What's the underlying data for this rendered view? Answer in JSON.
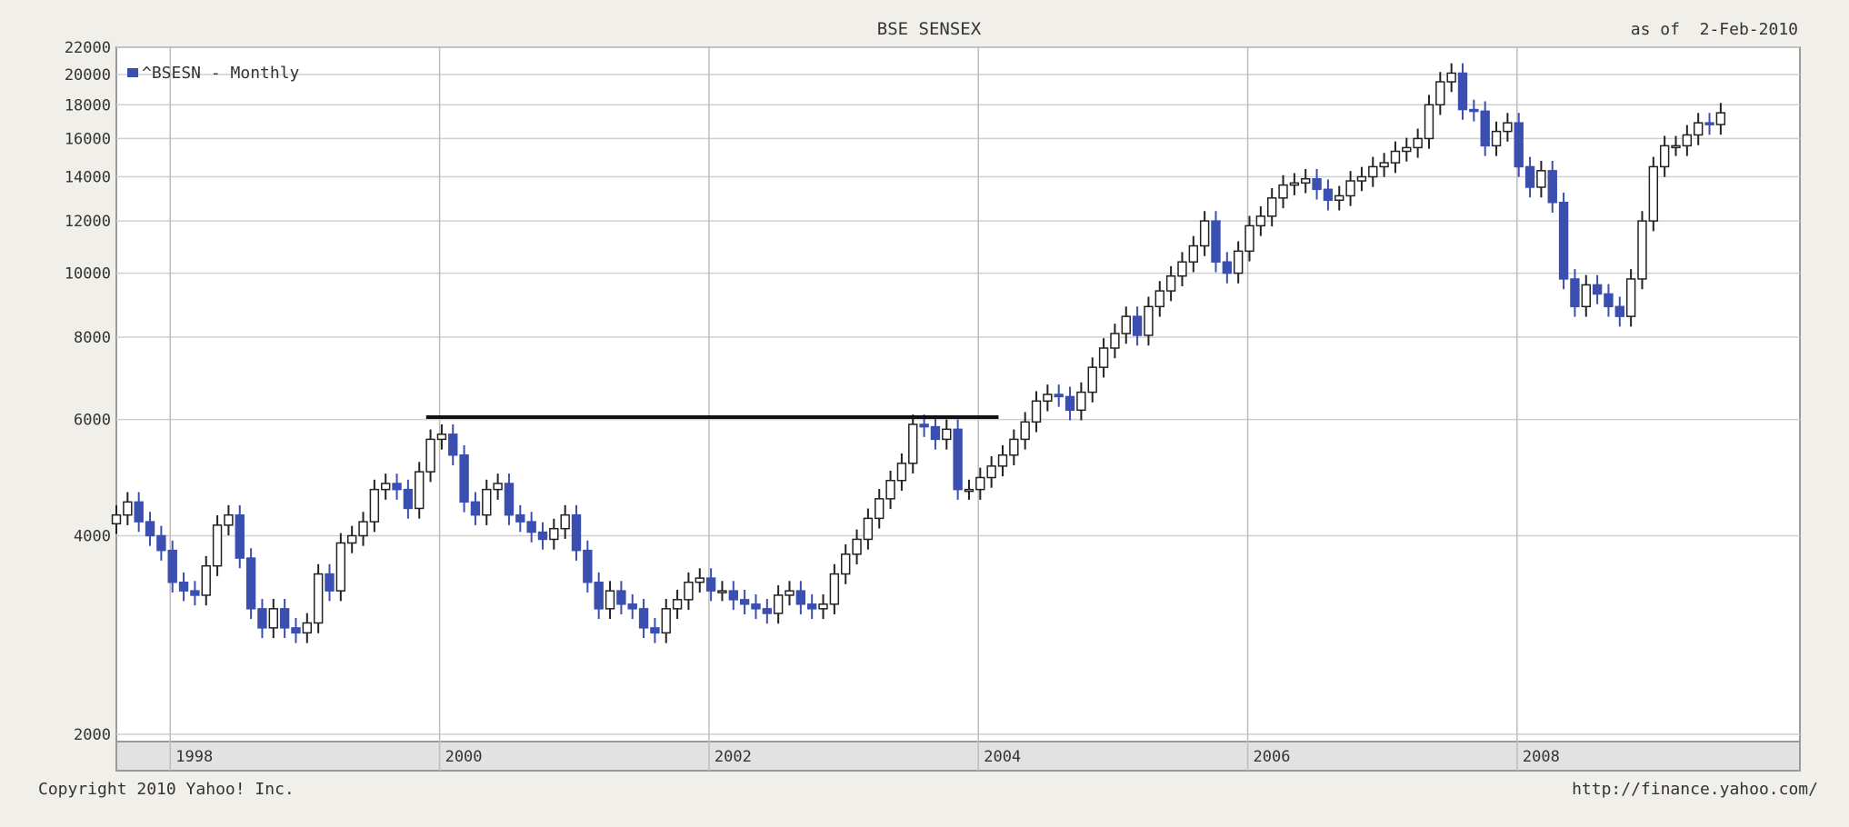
{
  "chart_data": {
    "type": "candlestick",
    "title": "BSE SENSEX",
    "as_of": "as of  2-Feb-2010",
    "legend": "^BSESN - Monthly",
    "legend_placement": "top-left",
    "copyright": "Copyright 2010 Yahoo! Inc.",
    "source_url": "http://finance.yahoo.com/",
    "y_scale": "log",
    "ylim": [
      1950,
      22000
    ],
    "y_ticks": [
      2000,
      4000,
      6000,
      8000,
      10000,
      12000,
      14000,
      16000,
      18000,
      20000,
      22000
    ],
    "xlim": [
      1997.6,
      2010.1
    ],
    "x_ticks": [
      1998,
      2000,
      2002,
      2004,
      2006,
      2008
    ],
    "x_tick_labels": [
      "1998",
      "2000",
      "2002",
      "2004",
      "2006",
      "2008"
    ],
    "grid": true,
    "colors": {
      "up": "#ffffff",
      "down": "#3a4fb0",
      "wick": "#222222",
      "reference_line": "#111111"
    },
    "reference_line": {
      "x_start": 1999.9,
      "x_end": 2004.15,
      "y": 6050
    },
    "closes": [
      4300,
      4500,
      4200,
      4000,
      3800,
      3400,
      3300,
      3250,
      3600,
      4150,
      4300,
      3700,
      3100,
      2900,
      3100,
      2900,
      2850,
      2950,
      3500,
      3300,
      3900,
      4000,
      4200,
      4700,
      4800,
      4700,
      4400,
      5000,
      5600,
      5700,
      5300,
      4500,
      4300,
      4700,
      4800,
      4300,
      4200,
      4050,
      3950,
      4100,
      4300,
      3800,
      3400,
      3100,
      3300,
      3150,
      3100,
      2900,
      2850,
      3100,
      3200,
      3400,
      3450,
      3300,
      3300,
      3200,
      3150,
      3100,
      3050,
      3250,
      3300,
      3150,
      3100,
      3150,
      3500,
      3750,
      3950,
      4250,
      4550,
      4850,
      5150,
      5900,
      5850,
      5600,
      5800,
      4700,
      4700,
      4900,
      5100,
      5300,
      5600,
      5950,
      6400,
      6550,
      6500,
      6200,
      6600,
      7200,
      7700,
      8100,
      8600,
      8050,
      8900,
      9400,
      9900,
      10400,
      11000,
      12000,
      10400,
      10000,
      10800,
      11800,
      12200,
      13000,
      13600,
      13700,
      13900,
      13400,
      12900,
      13100,
      13800,
      14000,
      14500,
      14700,
      15300,
      15500,
      16000,
      18000,
      19500,
      20100,
      17700,
      17600,
      15600,
      16400,
      16900,
      14500,
      13500,
      14300,
      12800,
      9800,
      8900,
      9600,
      9300,
      8900,
      8600,
      9800,
      12000,
      14500,
      15600,
      15600,
      16200,
      16900,
      16800,
      17500
    ],
    "series": [
      {
        "name": "^BSESN - Monthly",
        "start": 1997.6,
        "step_years": 0.0833
      }
    ]
  }
}
